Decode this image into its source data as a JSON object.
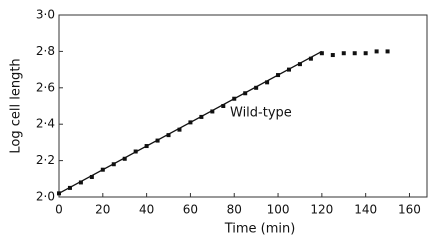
{
  "chart_data": {
    "type": "line",
    "xlabel": "Time (min)",
    "ylabel": "Log cell length",
    "annotation": "Wild-type",
    "xlim": [
      0,
      168
    ],
    "ylim": [
      2,
      3
    ],
    "xticks": [
      0,
      20,
      40,
      60,
      80,
      100,
      120,
      140,
      160
    ],
    "yticks": [
      {
        "value": 2,
        "label": "2·0"
      },
      {
        "value": 2.2,
        "label": "2·2"
      },
      {
        "value": 2.4,
        "label": "2·4"
      },
      {
        "value": 2.6,
        "label": "2·6"
      },
      {
        "value": 2.8,
        "label": "2·8"
      },
      {
        "value": 3,
        "label": "3·0"
      }
    ],
    "series": [
      {
        "style": "markers",
        "color": "#111111",
        "x": [
          0,
          5,
          10,
          15,
          20,
          25,
          30,
          35,
          40,
          45,
          50,
          55,
          60,
          65,
          70,
          75,
          80,
          85,
          90,
          95,
          100,
          105,
          110,
          115,
          120,
          125,
          130,
          135,
          140,
          145,
          150
        ],
        "values": [
          2.02,
          2.05,
          2.08,
          2.11,
          2.15,
          2.18,
          2.21,
          2.25,
          2.28,
          2.31,
          2.34,
          2.37,
          2.41,
          2.44,
          2.47,
          2.5,
          2.54,
          2.57,
          2.6,
          2.63,
          2.67,
          2.7,
          2.73,
          2.76,
          2.79,
          2.78,
          2.79,
          2.79,
          2.79,
          2.8,
          2.8
        ]
      },
      {
        "style": "line",
        "color": "#111111",
        "x": [
          0,
          120
        ],
        "values": [
          2.02,
          2.8
        ]
      }
    ]
  }
}
